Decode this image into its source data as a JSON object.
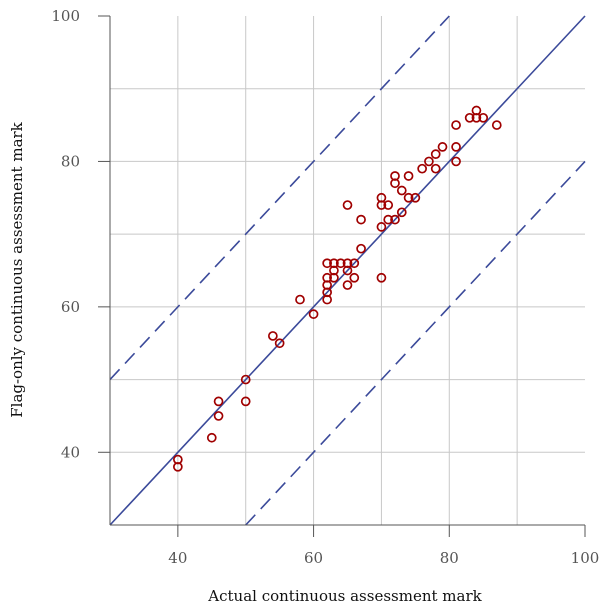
{
  "chart_data": {
    "type": "scatter",
    "title": "",
    "xlabel": "Actual continuous assessment mark",
    "ylabel": "Flag-only continuous assessment mark",
    "xlim": [
      30,
      100
    ],
    "ylim": [
      30,
      100
    ],
    "x_ticks": [
      40,
      60,
      80,
      100
    ],
    "y_ticks": [
      40,
      60,
      80,
      100
    ],
    "x_tick_labels": [
      "40",
      "60",
      "80",
      "100"
    ],
    "y_tick_labels": [
      "40",
      "60",
      "80",
      "100"
    ],
    "grid": true,
    "grid_x": [
      40,
      50,
      60,
      70,
      80,
      90
    ],
    "grid_y": [
      40,
      50,
      60,
      70,
      80,
      90
    ],
    "reference_lines": [
      {
        "style": "solid",
        "intercept": 0
      },
      {
        "style": "dashed",
        "intercept": 20
      },
      {
        "style": "dashed",
        "intercept": -20
      }
    ],
    "colors": {
      "points": "#a00000",
      "reference_lines": "#3b4a9a",
      "grid": "#c8c8c8",
      "axis": "#555555"
    },
    "points": [
      {
        "x": 40,
        "y": 39
      },
      {
        "x": 40,
        "y": 38
      },
      {
        "x": 45,
        "y": 42
      },
      {
        "x": 46,
        "y": 47
      },
      {
        "x": 46,
        "y": 45
      },
      {
        "x": 50,
        "y": 50
      },
      {
        "x": 50,
        "y": 47
      },
      {
        "x": 54,
        "y": 56
      },
      {
        "x": 55,
        "y": 55
      },
      {
        "x": 58,
        "y": 61
      },
      {
        "x": 60,
        "y": 59
      },
      {
        "x": 62,
        "y": 66
      },
      {
        "x": 62,
        "y": 64
      },
      {
        "x": 62,
        "y": 63
      },
      {
        "x": 62,
        "y": 62
      },
      {
        "x": 62,
        "y": 61
      },
      {
        "x": 63,
        "y": 66
      },
      {
        "x": 63,
        "y": 65
      },
      {
        "x": 63,
        "y": 64
      },
      {
        "x": 64,
        "y": 66
      },
      {
        "x": 65,
        "y": 66
      },
      {
        "x": 65,
        "y": 65
      },
      {
        "x": 65,
        "y": 63
      },
      {
        "x": 65,
        "y": 74
      },
      {
        "x": 66,
        "y": 66
      },
      {
        "x": 66,
        "y": 64
      },
      {
        "x": 67,
        "y": 68
      },
      {
        "x": 67,
        "y": 72
      },
      {
        "x": 70,
        "y": 75
      },
      {
        "x": 70,
        "y": 74
      },
      {
        "x": 70,
        "y": 71
      },
      {
        "x": 70,
        "y": 64
      },
      {
        "x": 71,
        "y": 74
      },
      {
        "x": 71,
        "y": 72
      },
      {
        "x": 72,
        "y": 78
      },
      {
        "x": 72,
        "y": 77
      },
      {
        "x": 72,
        "y": 72
      },
      {
        "x": 73,
        "y": 76
      },
      {
        "x": 73,
        "y": 73
      },
      {
        "x": 74,
        "y": 78
      },
      {
        "x": 74,
        "y": 75
      },
      {
        "x": 75,
        "y": 75
      },
      {
        "x": 76,
        "y": 79
      },
      {
        "x": 77,
        "y": 80
      },
      {
        "x": 78,
        "y": 81
      },
      {
        "x": 78,
        "y": 79
      },
      {
        "x": 79,
        "y": 82
      },
      {
        "x": 81,
        "y": 85
      },
      {
        "x": 81,
        "y": 82
      },
      {
        "x": 81,
        "y": 80
      },
      {
        "x": 83,
        "y": 86
      },
      {
        "x": 84,
        "y": 87
      },
      {
        "x": 84,
        "y": 86
      },
      {
        "x": 85,
        "y": 86
      },
      {
        "x": 87,
        "y": 85
      }
    ]
  }
}
